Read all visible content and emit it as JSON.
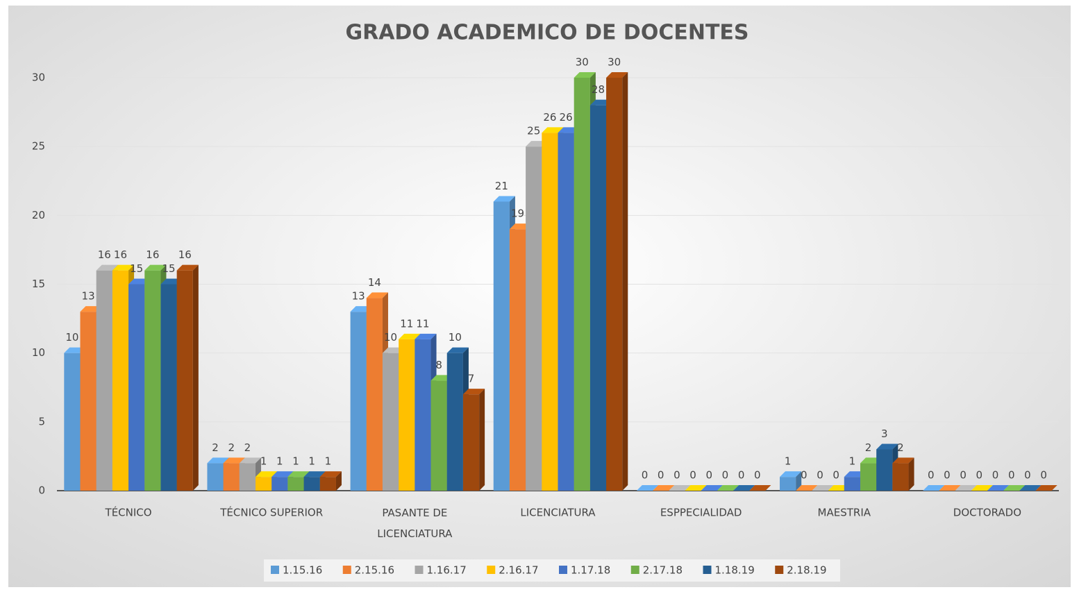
{
  "chart_data": {
    "type": "bar",
    "title": "GRADO ACADEMICO DE DOCENTES",
    "categories": [
      "TÉCNICO",
      "TÉCNICO SUPERIOR",
      "PASANTE DE LICENCIATURA",
      "LICENCIATURA",
      "ESPPECIALIDAD",
      "MAESTRIA",
      "DOCTORADO"
    ],
    "series": [
      {
        "name": "1.15.16",
        "color": "#5b9bd5",
        "values": [
          10,
          2,
          13,
          21,
          0,
          1,
          0
        ]
      },
      {
        "name": "2.15.16",
        "color": "#ed7d31",
        "values": [
          13,
          2,
          14,
          19,
          0,
          0,
          0
        ]
      },
      {
        "name": "1.16.17",
        "color": "#a5a5a5",
        "values": [
          16,
          2,
          10,
          25,
          0,
          0,
          0
        ]
      },
      {
        "name": "2.16.17",
        "color": "#ffc000",
        "values": [
          16,
          1,
          11,
          26,
          0,
          0,
          0
        ]
      },
      {
        "name": "1.17.18",
        "color": "#4472c4",
        "values": [
          15,
          1,
          11,
          26,
          0,
          1,
          0
        ]
      },
      {
        "name": "2.17.18",
        "color": "#70ad47",
        "values": [
          16,
          1,
          8,
          30,
          0,
          2,
          0
        ]
      },
      {
        "name": "1.18.19",
        "color": "#255e91",
        "values": [
          15,
          1,
          10,
          28,
          0,
          3,
          0
        ]
      },
      {
        "name": "2.18.19",
        "color": "#9e480e",
        "values": [
          16,
          1,
          7,
          30,
          0,
          2,
          0
        ]
      }
    ],
    "ylim": [
      0,
      30
    ],
    "yticks": [
      0,
      5,
      10,
      15,
      20,
      25,
      30
    ],
    "grid": true,
    "legend": "bottom"
  }
}
